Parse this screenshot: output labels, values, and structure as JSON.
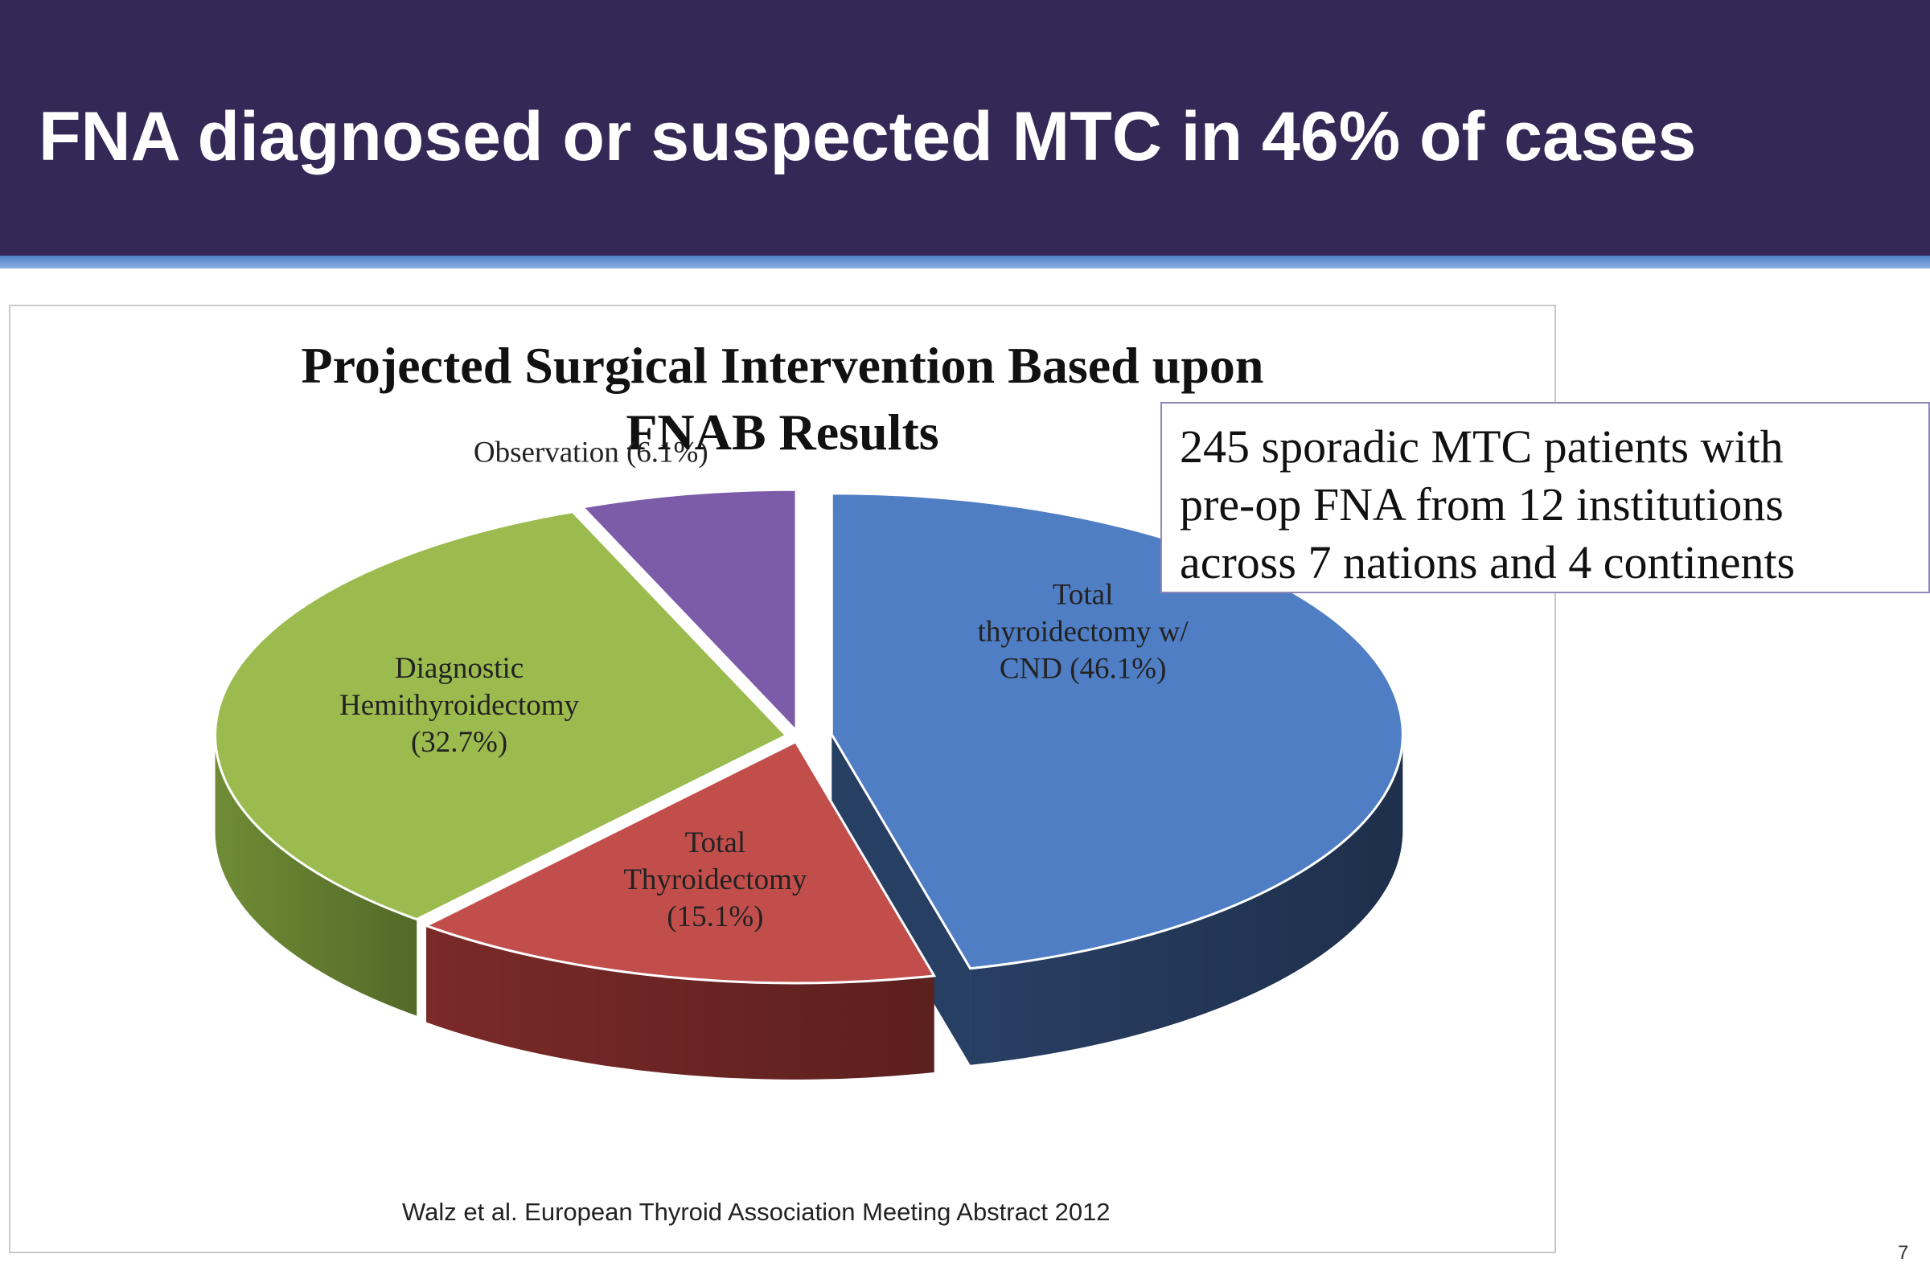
{
  "slide": {
    "title": "FNA diagnosed or suspected MTC in 46% of cases",
    "page_number": "7",
    "citation": "Walz et al. European Thyroid Association  Meeting Abstract 2012",
    "info_box": {
      "lines": [
        "245 sporadic MTC patients with",
        "pre-op FNA from 12 institutions",
        "across 7 nations and 4 continents"
      ]
    },
    "colors": {
      "header_bg": "#332856",
      "header_line": "#4f7fc6"
    }
  },
  "chart_data": {
    "type": "pie",
    "style": "3d-exploded",
    "title": "Projected Surgical Intervention Based upon FNAB Results",
    "title_lines": [
      "Projected Surgical Intervention Based upon",
      "FNAB Results"
    ],
    "slices": [
      {
        "name": "Total thyroidectomy w/ CND",
        "value": 46.1,
        "label_lines": [
          "Total",
          "thyroidectomy w/",
          "CND (46.1%)"
        ],
        "color": "#4f7ec4",
        "side_color": "#283f64"
      },
      {
        "name": "Total Thyroidectomy",
        "value": 15.1,
        "label_lines": [
          "Total",
          "Thyroidectomy",
          "(15.1%)"
        ],
        "color": "#c24e4c",
        "side_color": "#7a2a28"
      },
      {
        "name": "Diagnostic Hemithyroidectomy",
        "value": 32.7,
        "label_lines": [
          "Diagnostic",
          "Hemithyroidectomy",
          "(32.7%)"
        ],
        "color": "#9bbb4e",
        "side_color": "#6f8c35"
      },
      {
        "name": "Observation",
        "value": 6.1,
        "label_lines": [
          "Observation (6.1%)"
        ],
        "color": "#7c5ba8",
        "side_color": "#55407a"
      }
    ]
  }
}
